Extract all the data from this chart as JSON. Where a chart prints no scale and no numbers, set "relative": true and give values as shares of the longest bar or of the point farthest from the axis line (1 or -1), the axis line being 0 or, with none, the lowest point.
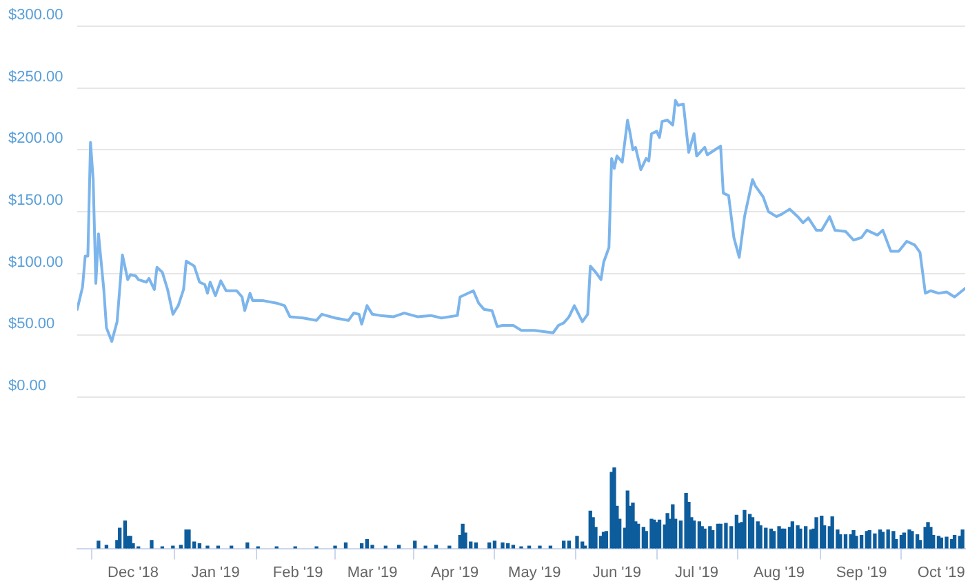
{
  "chart_data": [
    {
      "type": "line",
      "color": "#7cb5ec",
      "marker": "none",
      "tick_labels": "y",
      "grid": "y",
      "xlim": [
        "2018-11-10",
        "2019-10-10"
      ],
      "ylim": [
        0,
        300
      ],
      "yticks": [
        {
          "value": 0,
          "label": "$0.00"
        },
        {
          "value": 50,
          "label": "$50.00"
        },
        {
          "value": 100,
          "label": "$100.00"
        },
        {
          "value": 150,
          "label": "$150.00"
        },
        {
          "value": 200,
          "label": "$200.00"
        },
        {
          "value": 250,
          "label": "$250.00"
        },
        {
          "value": 300,
          "label": "$300.00"
        }
      ],
      "x": [
        "2018-11-10",
        "2018-11-12",
        "2018-11-13",
        "2018-11-14",
        "2018-11-15",
        "2018-11-16",
        "2018-11-17",
        "2018-11-18",
        "2018-11-20",
        "2018-11-21",
        "2018-11-23",
        "2018-11-25",
        "2018-11-27",
        "2018-11-29",
        "2018-11-30",
        "2018-12-02",
        "2018-12-03",
        "2018-12-06",
        "2018-12-07",
        "2018-12-09",
        "2018-12-10",
        "2018-12-12",
        "2018-12-14",
        "2018-12-16",
        "2018-12-18",
        "2018-12-20",
        "2018-12-21",
        "2018-12-24",
        "2018-12-26",
        "2018-12-28",
        "2018-12-29",
        "2018-12-30",
        "2019-01-01",
        "2019-01-03",
        "2019-01-05",
        "2019-01-09",
        "2019-01-11",
        "2019-01-12",
        "2019-01-14",
        "2019-01-15",
        "2019-01-19",
        "2019-01-24",
        "2019-01-27",
        "2019-01-29",
        "2019-02-03",
        "2019-02-08",
        "2019-02-10",
        "2019-02-15",
        "2019-02-20",
        "2019-02-22",
        "2019-02-24",
        "2019-02-25",
        "2019-02-27",
        "2019-03-01",
        "2019-03-04",
        "2019-03-09",
        "2019-03-13",
        "2019-03-18",
        "2019-03-23",
        "2019-03-27",
        "2019-04-02",
        "2019-04-03",
        "2019-04-08",
        "2019-04-10",
        "2019-04-12",
        "2019-04-15",
        "2019-04-17",
        "2019-04-19",
        "2019-04-23",
        "2019-04-26",
        "2019-05-01",
        "2019-05-08",
        "2019-05-10",
        "2019-05-12",
        "2019-05-14",
        "2019-05-16",
        "2019-05-19",
        "2019-05-21",
        "2019-05-22",
        "2019-05-24",
        "2019-05-26",
        "2019-05-27",
        "2019-05-29",
        "2019-05-30",
        "2019-05-31",
        "2019-06-01",
        "2019-06-03",
        "2019-06-05",
        "2019-06-06",
        "2019-06-07",
        "2019-06-08",
        "2019-06-10",
        "2019-06-12",
        "2019-06-13",
        "2019-06-14",
        "2019-06-16",
        "2019-06-17",
        "2019-06-18",
        "2019-06-20",
        "2019-06-22",
        "2019-06-23",
        "2019-06-24",
        "2019-06-26",
        "2019-06-28",
        "2019-06-30",
        "2019-07-01",
        "2019-07-04",
        "2019-07-05",
        "2019-07-10",
        "2019-07-11",
        "2019-07-13",
        "2019-07-15",
        "2019-07-17",
        "2019-07-19",
        "2019-07-22",
        "2019-07-23",
        "2019-07-26",
        "2019-07-28",
        "2019-07-31",
        "2019-08-02",
        "2019-08-05",
        "2019-08-08",
        "2019-08-10",
        "2019-08-12",
        "2019-08-15",
        "2019-08-17",
        "2019-08-20",
        "2019-08-22",
        "2019-08-26",
        "2019-08-29",
        "2019-09-01",
        "2019-09-03",
        "2019-09-07",
        "2019-09-09",
        "2019-09-12",
        "2019-09-15",
        "2019-09-18",
        "2019-09-21",
        "2019-09-23",
        "2019-09-25",
        "2019-09-27",
        "2019-09-30",
        "2019-10-03",
        "2019-10-06",
        "2019-10-10"
      ],
      "values": [
        71,
        89,
        114,
        114,
        206,
        176,
        92,
        132,
        87,
        56,
        45,
        61,
        115,
        95,
        99,
        98,
        95,
        93,
        96,
        87,
        105,
        101,
        87,
        67,
        74,
        87,
        110,
        106,
        93,
        91,
        84,
        93,
        82,
        94,
        86,
        86,
        81,
        70,
        84,
        78,
        78,
        76,
        74,
        65,
        64,
        62,
        67,
        64,
        62,
        68,
        67,
        59,
        74,
        67,
        66,
        65,
        68,
        65,
        66,
        64,
        66,
        81,
        86,
        76,
        71,
        70,
        57,
        58,
        58,
        54,
        54,
        52,
        58,
        60,
        65,
        74,
        61,
        67,
        106,
        101,
        95,
        109,
        121,
        193,
        185,
        195,
        190,
        224,
        213,
        200,
        202,
        184,
        193,
        191,
        213,
        215,
        210,
        223,
        224,
        220,
        240,
        236,
        237,
        198,
        213,
        195,
        202,
        196,
        203,
        165,
        163,
        129,
        113,
        146,
        176,
        171,
        162,
        150,
        146,
        148,
        152,
        146,
        141,
        145,
        135,
        135,
        146,
        135,
        134,
        127,
        129,
        135,
        131,
        135,
        118,
        118,
        126,
        123,
        117,
        84,
        86,
        84,
        85,
        81,
        88
      ]
    },
    {
      "type": "bar",
      "color": "#0d5c9c",
      "relative": true,
      "tick_labels": "x",
      "xlim": [
        "2018-11-10",
        "2019-10-10"
      ],
      "xticks": [
        {
          "value": "2018-12-01",
          "label": "Dec '18"
        },
        {
          "value": "2019-01-01",
          "label": "Jan '19"
        },
        {
          "value": "2019-02-01",
          "label": "Feb '19"
        },
        {
          "value": "2019-03-01",
          "label": "Mar '19"
        },
        {
          "value": "2019-04-01",
          "label": "Apr '19"
        },
        {
          "value": "2019-05-01",
          "label": "May '19"
        },
        {
          "value": "2019-06-01",
          "label": "Jun '19"
        },
        {
          "value": "2019-07-01",
          "label": "Jul '19"
        },
        {
          "value": "2019-08-01",
          "label": "Aug '19"
        },
        {
          "value": "2019-09-01",
          "label": "Sep '19"
        },
        {
          "value": "2019-10-01",
          "label": "Oct '19"
        }
      ],
      "x": [
        "2018-11-18",
        "2018-11-21",
        "2018-11-25",
        "2018-11-26",
        "2018-11-28",
        "2018-11-29",
        "2018-11-30",
        "2018-12-01",
        "2018-12-03",
        "2018-12-08",
        "2018-12-12",
        "2018-12-16",
        "2018-12-19",
        "2018-12-21",
        "2018-12-22",
        "2018-12-24",
        "2018-12-26",
        "2018-12-29",
        "2019-01-02",
        "2019-01-07",
        "2019-01-13",
        "2019-01-17",
        "2019-01-24",
        "2019-01-31",
        "2019-02-08",
        "2019-02-15",
        "2019-02-19",
        "2019-02-25",
        "2019-02-27",
        "2019-03-01",
        "2019-03-06",
        "2019-03-11",
        "2019-03-17",
        "2019-03-21",
        "2019-03-25",
        "2019-03-30",
        "2019-04-03",
        "2019-04-04",
        "2019-04-05",
        "2019-04-07",
        "2019-04-09",
        "2019-04-14",
        "2019-04-16",
        "2019-04-19",
        "2019-04-21",
        "2019-04-23",
        "2019-04-26",
        "2019-04-29",
        "2019-05-03",
        "2019-05-07",
        "2019-05-12",
        "2019-05-14",
        "2019-05-17",
        "2019-05-19",
        "2019-05-20",
        "2019-05-22",
        "2019-05-23",
        "2019-05-24",
        "2019-05-26",
        "2019-05-27",
        "2019-05-28",
        "2019-05-30",
        "2019-05-31",
        "2019-06-01",
        "2019-06-02",
        "2019-06-04",
        "2019-06-05",
        "2019-06-06",
        "2019-06-07",
        "2019-06-08",
        "2019-06-09",
        "2019-06-11",
        "2019-06-12",
        "2019-06-14",
        "2019-06-15",
        "2019-06-16",
        "2019-06-17",
        "2019-06-19",
        "2019-06-20",
        "2019-06-21",
        "2019-06-22",
        "2019-06-23",
        "2019-06-25",
        "2019-06-27",
        "2019-06-28",
        "2019-06-29",
        "2019-06-30",
        "2019-07-02",
        "2019-07-03",
        "2019-07-04",
        "2019-07-06",
        "2019-07-07",
        "2019-07-09",
        "2019-07-10",
        "2019-07-12",
        "2019-07-14",
        "2019-07-16",
        "2019-07-17",
        "2019-07-18",
        "2019-07-19",
        "2019-07-21",
        "2019-07-22",
        "2019-07-24",
        "2019-07-25",
        "2019-07-27",
        "2019-07-29",
        "2019-07-30",
        "2019-08-01",
        "2019-08-02",
        "2019-08-03",
        "2019-08-05",
        "2019-08-06",
        "2019-08-08",
        "2019-08-09",
        "2019-08-11",
        "2019-08-13",
        "2019-08-14",
        "2019-08-15",
        "2019-08-17",
        "2019-08-18",
        "2019-08-20",
        "2019-08-21",
        "2019-08-23",
        "2019-08-24",
        "2019-08-26",
        "2019-08-28",
        "2019-08-29",
        "2019-08-30",
        "2019-09-01",
        "2019-09-03",
        "2019-09-04",
        "2019-09-06",
        "2019-09-08",
        "2019-09-09",
        "2019-09-11",
        "2019-09-13",
        "2019-09-14",
        "2019-09-16",
        "2019-09-17",
        "2019-09-19",
        "2019-09-20",
        "2019-09-22",
        "2019-09-23",
        "2019-09-25",
        "2019-09-26",
        "2019-09-27",
        "2019-09-28",
        "2019-09-30",
        "2019-10-01",
        "2019-10-03",
        "2019-10-05",
        "2019-10-06",
        "2019-10-08",
        "2019-10-09"
      ],
      "values": [
        0.09,
        0.04,
        0.1,
        0.25,
        0.34,
        0.15,
        0.15,
        0.06,
        0.02,
        0.1,
        0.02,
        0.03,
        0.04,
        0.23,
        0.23,
        0.08,
        0.06,
        0.03,
        0.03,
        0.03,
        0.07,
        0.02,
        0.02,
        0.02,
        0.02,
        0.03,
        0.07,
        0.06,
        0.11,
        0.04,
        0.03,
        0.04,
        0.09,
        0.03,
        0.04,
        0.03,
        0.16,
        0.3,
        0.19,
        0.08,
        0.07,
        0.07,
        0.09,
        0.07,
        0.06,
        0.04,
        0.02,
        0.03,
        0.03,
        0.03,
        0.09,
        0.09,
        0.15,
        0.08,
        0.03,
        0.46,
        0.38,
        0.26,
        0.15,
        0.2,
        0.21,
        0.94,
        1,
        0.52,
        0.36,
        0.25,
        0.71,
        0.52,
        0.56,
        0.33,
        0.3,
        0.26,
        0.21,
        0.36,
        0.35,
        0.32,
        0.35,
        0.29,
        0.43,
        0.36,
        0.54,
        0.36,
        0.34,
        0.68,
        0.57,
        0.38,
        0.34,
        0.33,
        0.27,
        0.24,
        0.27,
        0.22,
        0.3,
        0.3,
        0.31,
        0.27,
        0.41,
        0.31,
        0.32,
        0.47,
        0.42,
        0.38,
        0.33,
        0.28,
        0.25,
        0.24,
        0.21,
        0.27,
        0.24,
        0.24,
        0.26,
        0.33,
        0.28,
        0.24,
        0.27,
        0.23,
        0.24,
        0.38,
        0.4,
        0.28,
        0.27,
        0.39,
        0.23,
        0.17,
        0.17,
        0.17,
        0.22,
        0.15,
        0.16,
        0.21,
        0.22,
        0.18,
        0.23,
        0.2,
        0.23,
        0.21,
        0.11,
        0.16,
        0.19,
        0.23,
        0.21,
        0.17,
        0.1,
        0.26,
        0.32,
        0.26,
        0.16,
        0.15,
        0.13,
        0.14,
        0.11,
        0.16,
        0.15,
        0.23
      ]
    }
  ]
}
